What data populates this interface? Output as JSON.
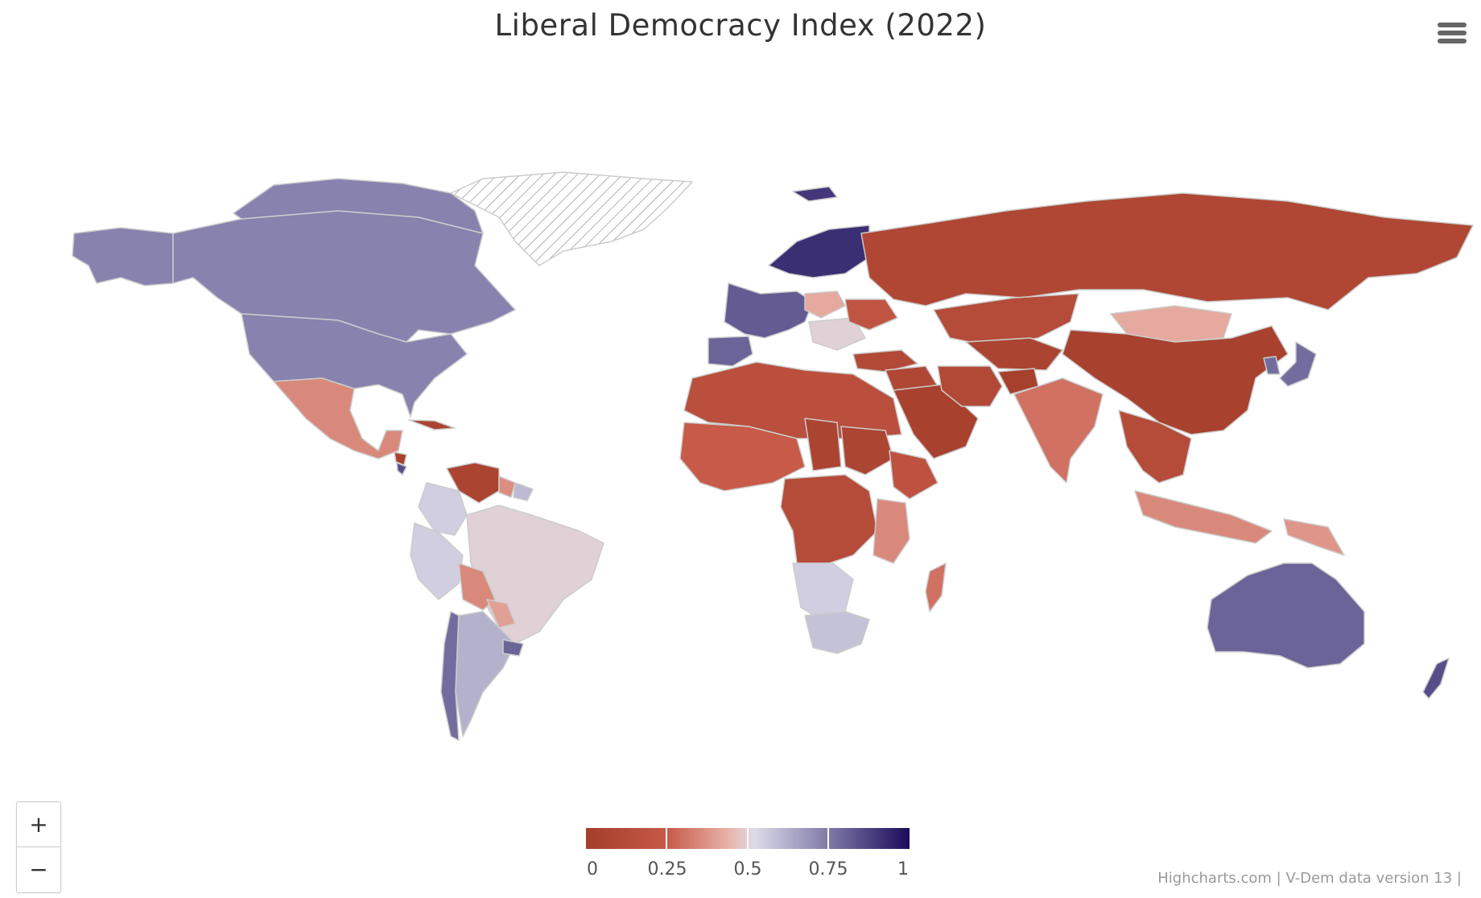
{
  "header": {
    "title": "Liberal Democracy Index (2022)"
  },
  "controls": {
    "zoom_in": "+",
    "zoom_out": "−",
    "menu_icon": "hamburger-menu-icon"
  },
  "legend": {
    "min": 0,
    "max": 1,
    "ticks": [
      "0",
      "0.25",
      "0.5",
      "0.75",
      "1"
    ],
    "colors": {
      "low": "#a43e2b",
      "mid_low": "#eab7ae",
      "mid": "#dcdbe8",
      "mid_high": "#7f7aa8",
      "high": "#1b0b5a",
      "no_data": "hatched"
    }
  },
  "credits": "Highcharts.com | V-Dem data version 13 |",
  "regions": [
    {
      "name": "Alaska",
      "value": 0.73
    },
    {
      "name": "Canada",
      "value": 0.73
    },
    {
      "name": "Canadian Arctic",
      "value": 0.73
    },
    {
      "name": "Greenland",
      "value": null
    },
    {
      "name": "United States",
      "value": 0.73
    },
    {
      "name": "Mexico",
      "value": 0.35
    },
    {
      "name": "Cuba",
      "value": 0.05
    },
    {
      "name": "Nicaragua",
      "value": 0.03
    },
    {
      "name": "Costa Rica",
      "value": 0.85
    },
    {
      "name": "Venezuela",
      "value": 0.05
    },
    {
      "name": "Colombia",
      "value": 0.55
    },
    {
      "name": "Guyana",
      "value": 0.36
    },
    {
      "name": "Suriname",
      "value": 0.6
    },
    {
      "name": "Brazil",
      "value": 0.5
    },
    {
      "name": "Peru",
      "value": 0.55
    },
    {
      "name": "Bolivia",
      "value": 0.35
    },
    {
      "name": "Chile",
      "value": 0.78
    },
    {
      "name": "Argentina",
      "value": 0.62
    },
    {
      "name": "Uruguay",
      "value": 0.8
    },
    {
      "name": "Paraguay",
      "value": 0.4
    },
    {
      "name": "Iceland",
      "value": 0.9
    },
    {
      "name": "Scandinavia",
      "value": 0.92
    },
    {
      "name": "Western Europe",
      "value": 0.82
    },
    {
      "name": "Iberia",
      "value": 0.8
    },
    {
      "name": "Poland",
      "value": 0.42
    },
    {
      "name": "Balkans",
      "value": 0.5
    },
    {
      "name": "Ukraine",
      "value": 0.2
    },
    {
      "name": "Turkey",
      "value": 0.1
    },
    {
      "name": "Russia",
      "value": 0.08
    },
    {
      "name": "Kazakhstan",
      "value": 0.12
    },
    {
      "name": "Central Asia",
      "value": 0.05
    },
    {
      "name": "Mongolia",
      "value": 0.42
    },
    {
      "name": "China",
      "value": 0.03
    },
    {
      "name": "Korea",
      "value": 0.78
    },
    {
      "name": "Japan",
      "value": 0.78
    },
    {
      "name": "Middle East",
      "value": 0.08
    },
    {
      "name": "Saudi Arabia",
      "value": 0.03
    },
    {
      "name": "Iran",
      "value": 0.1
    },
    {
      "name": "Afghanistan",
      "value": 0.02
    },
    {
      "name": "India",
      "value": 0.3
    },
    {
      "name": "Southeast Asia",
      "value": 0.12
    },
    {
      "name": "Indonesia",
      "value": 0.35
    },
    {
      "name": "Papua New Guinea",
      "value": 0.38
    },
    {
      "name": "North Africa",
      "value": 0.15
    },
    {
      "name": "West Africa",
      "value": 0.25
    },
    {
      "name": "Chad",
      "value": 0.05
    },
    {
      "name": "Sudan",
      "value": 0.06
    },
    {
      "name": "Ethiopia",
      "value": 0.18
    },
    {
      "name": "Central Africa",
      "value": 0.12
    },
    {
      "name": "Kenya Tanzania",
      "value": 0.35
    },
    {
      "name": "Southern Africa",
      "value": 0.55
    },
    {
      "name": "South Africa",
      "value": 0.58
    },
    {
      "name": "Madagascar",
      "value": 0.3
    },
    {
      "name": "Australia",
      "value": 0.8
    },
    {
      "name": "New Zealand",
      "value": 0.85
    }
  ]
}
